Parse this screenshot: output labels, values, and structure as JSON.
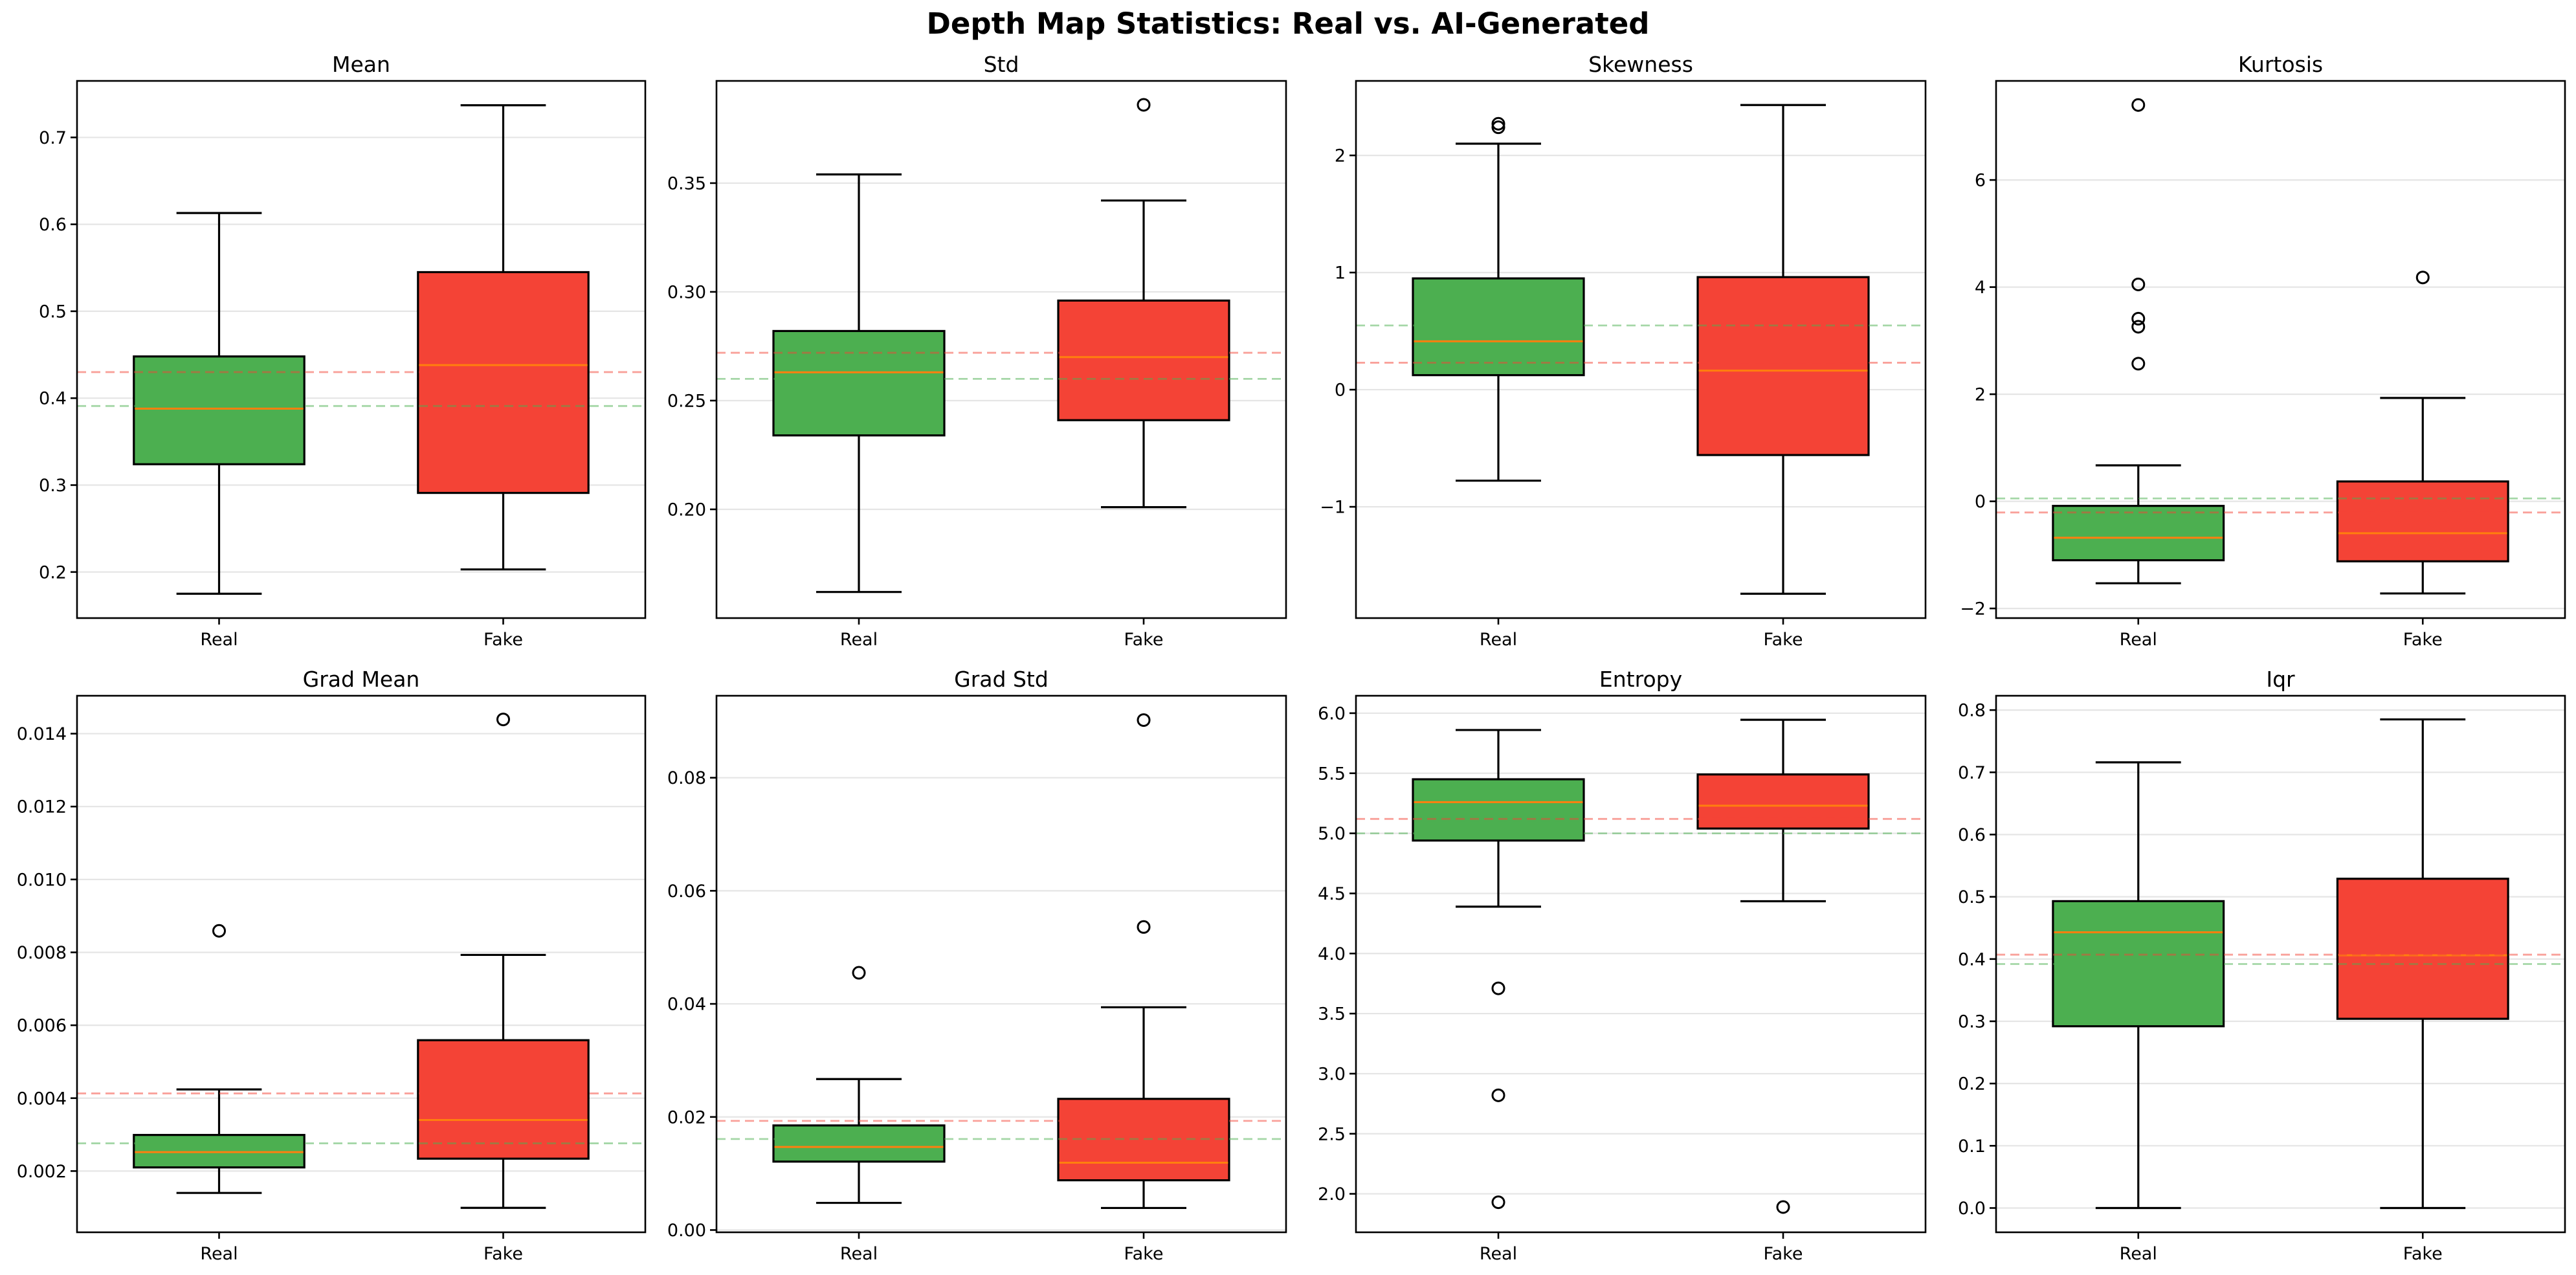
{
  "chart_data": {
    "type": "boxplot",
    "title": "Depth Map Statistics: Real vs. AI-Generated",
    "categories": [
      "Real",
      "Fake"
    ],
    "colors": {
      "Real": "#4CAF50",
      "Fake": "#F44336",
      "median": "#FF7F0E",
      "mean_line_real": "#4CAF50",
      "mean_line_fake": "#F44336",
      "grid": "#E5E5E5"
    },
    "grid": "y-axis horizontal, light gray",
    "mean_lines": "dashed horizontal lines at group means, semi-transparent",
    "panels": [
      {
        "title": "Mean",
        "ylim": [
          0.147,
          0.765
        ],
        "yticks": [
          0.2,
          0.3,
          0.4,
          0.5,
          0.6,
          0.7
        ],
        "ytick_labels": [
          "0.2",
          "0.3",
          "0.4",
          "0.5",
          "0.6",
          "0.7"
        ],
        "series": [
          {
            "name": "Real",
            "whisker_low": 0.175,
            "q1": 0.324,
            "median": 0.388,
            "q3": 0.448,
            "whisker_high": 0.613,
            "outliers": [],
            "mean": 0.391
          },
          {
            "name": "Fake",
            "whisker_low": 0.203,
            "q1": 0.291,
            "median": 0.438,
            "q3": 0.545,
            "whisker_high": 0.737,
            "outliers": [],
            "mean": 0.43
          }
        ]
      },
      {
        "title": "Std",
        "ylim": [
          0.15,
          0.397
        ],
        "yticks": [
          0.2,
          0.25,
          0.3,
          0.35
        ],
        "ytick_labels": [
          "0.20",
          "0.25",
          "0.30",
          "0.35"
        ],
        "series": [
          {
            "name": "Real",
            "whisker_low": 0.162,
            "q1": 0.234,
            "median": 0.263,
            "q3": 0.282,
            "whisker_high": 0.354,
            "outliers": [],
            "mean": 0.26
          },
          {
            "name": "Fake",
            "whisker_low": 0.201,
            "q1": 0.241,
            "median": 0.27,
            "q3": 0.296,
            "whisker_high": 0.342,
            "outliers": [
              0.386
            ],
            "mean": 0.272
          }
        ]
      },
      {
        "title": "Skewness",
        "ylim": [
          -1.95,
          2.636
        ],
        "yticks": [
          -1,
          0,
          1,
          2
        ],
        "ytick_labels": [
          "−1",
          "0",
          "1",
          "2"
        ],
        "series": [
          {
            "name": "Real",
            "whisker_low": -0.777,
            "q1": 0.124,
            "median": 0.413,
            "q3": 0.95,
            "whisker_high": 2.1,
            "outliers": [
              2.27,
              2.24
            ],
            "mean": 0.548
          },
          {
            "name": "Fake",
            "whisker_low": -1.742,
            "q1": -0.558,
            "median": 0.163,
            "q3": 0.961,
            "whisker_high": 2.43,
            "outliers": [],
            "mean": 0.23
          }
        ]
      },
      {
        "title": "Kurtosis",
        "ylim": [
          -2.18,
          7.85
        ],
        "yticks": [
          -2,
          0,
          2,
          4,
          6
        ],
        "ytick_labels": [
          "−2",
          "0",
          "2",
          "4",
          "6"
        ],
        "series": [
          {
            "name": "Real",
            "whisker_low": -1.53,
            "q1": -1.1,
            "median": -0.68,
            "q3": -0.085,
            "whisker_high": 0.672,
            "outliers": [
              7.4,
              4.05,
              3.41,
              3.26,
              2.57
            ],
            "mean": 0.054
          },
          {
            "name": "Fake",
            "whisker_low": -1.72,
            "q1": -1.12,
            "median": -0.595,
            "q3": 0.371,
            "whisker_high": 1.93,
            "outliers": [
              4.18
            ],
            "mean": -0.208
          }
        ]
      },
      {
        "title": "Grad Mean",
        "ylim": [
          0.00032,
          0.01504
        ],
        "yticks": [
          0.002,
          0.004,
          0.006,
          0.008,
          0.01,
          0.012,
          0.014
        ],
        "ytick_labels": [
          "0.002",
          "0.004",
          "0.006",
          "0.008",
          "0.010",
          "0.012",
          "0.014"
        ],
        "series": [
          {
            "name": "Real",
            "whisker_low": 0.0014,
            "q1": 0.0021,
            "median": 0.00252,
            "q3": 0.00299,
            "whisker_high": 0.00424,
            "outliers": [
              0.00859
            ],
            "mean": 0.00276
          },
          {
            "name": "Fake",
            "whisker_low": 0.00099,
            "q1": 0.00234,
            "median": 0.0034,
            "q3": 0.00559,
            "whisker_high": 0.00793,
            "outliers": [
              0.01439
            ],
            "mean": 0.00413
          }
        ]
      },
      {
        "title": "Grad Std",
        "ylim": [
          -0.0004,
          0.0945
        ],
        "yticks": [
          0.0,
          0.02,
          0.04,
          0.06,
          0.08
        ],
        "ytick_labels": [
          "0.00",
          "0.02",
          "0.04",
          "0.06",
          "0.08"
        ],
        "series": [
          {
            "name": "Real",
            "whisker_low": 0.0048,
            "q1": 0.0121,
            "median": 0.0147,
            "q3": 0.0185,
            "whisker_high": 0.0267,
            "outliers": [
              0.0455
            ],
            "mean": 0.0161
          },
          {
            "name": "Fake",
            "whisker_low": 0.0039,
            "q1": 0.0088,
            "median": 0.0119,
            "q3": 0.0232,
            "whisker_high": 0.0394,
            "outliers": [
              0.0902,
              0.0536
            ],
            "mean": 0.0193
          }
        ]
      },
      {
        "title": "Entropy",
        "ylim": [
          1.68,
          6.145
        ],
        "yticks": [
          2.0,
          2.5,
          3.0,
          3.5,
          4.0,
          4.5,
          5.0,
          5.5,
          6.0
        ],
        "ytick_labels": [
          "2.0",
          "2.5",
          "3.0",
          "3.5",
          "4.0",
          "4.5",
          "5.0",
          "5.5",
          "6.0"
        ],
        "series": [
          {
            "name": "Real",
            "whisker_low": 4.39,
            "q1": 4.94,
            "median": 5.26,
            "q3": 5.45,
            "whisker_high": 5.86,
            "outliers": [
              3.71,
              2.82,
              1.93
            ],
            "mean": 5.0
          },
          {
            "name": "Fake",
            "whisker_low": 4.435,
            "q1": 5.04,
            "median": 5.23,
            "q3": 5.49,
            "whisker_high": 5.945,
            "outliers": [
              1.89
            ],
            "mean": 5.12
          }
        ]
      },
      {
        "title": "Iqr",
        "ylim": [
          -0.039,
          0.823
        ],
        "yticks": [
          0.0,
          0.1,
          0.2,
          0.3,
          0.4,
          0.5,
          0.6,
          0.7,
          0.8
        ],
        "ytick_labels": [
          "0.0",
          "0.1",
          "0.2",
          "0.3",
          "0.4",
          "0.5",
          "0.6",
          "0.7",
          "0.8"
        ],
        "series": [
          {
            "name": "Real",
            "whisker_low": 0.0,
            "q1": 0.292,
            "median": 0.443,
            "q3": 0.493,
            "whisker_high": 0.716,
            "outliers": [],
            "mean": 0.392
          },
          {
            "name": "Fake",
            "whisker_low": 0.0,
            "q1": 0.304,
            "median": 0.406,
            "q3": 0.529,
            "whisker_high": 0.785,
            "outliers": [],
            "mean": 0.407
          }
        ]
      }
    ]
  }
}
